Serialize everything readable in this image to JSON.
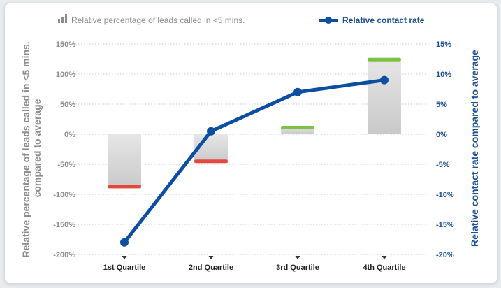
{
  "colors": {
    "left_axis": "#8c8c8c",
    "right_axis": "#1a4f94",
    "line": "#0b4ea2",
    "negative_bar_cap": "#e2483d",
    "positive_bar_cap": "#7cc242",
    "bar_body": "#d9d9d9",
    "grid": "#c8c8c8"
  },
  "legend": {
    "bars_label": "Relative percentage of leads called in <5 mins.",
    "bars_icon": "bar-chart-icon",
    "line_label": "Relative contact rate",
    "line_icon": "line-marker-icon"
  },
  "chart_data": {
    "type": "bar",
    "categories": [
      "1st Quartile",
      "2nd Quartile",
      "3rd Quartile",
      "4th Quartile"
    ],
    "series": [
      {
        "name": "Relative percentage of leads called in <5 mins.",
        "type": "bar",
        "axis": "left",
        "values": [
          -90,
          -48,
          14,
          127
        ]
      },
      {
        "name": "Relative contact rate",
        "type": "line",
        "axis": "right",
        "values": [
          -18,
          0.5,
          7,
          9
        ]
      }
    ],
    "ylabel_left": "Relative percentage of leads called in <5 mins. compared to average",
    "ylabel_right": "Relative contact rate compared to average",
    "ylim_left": [
      -200,
      150
    ],
    "ylim_right": [
      -20,
      15
    ],
    "yticks_left": [
      "150%",
      "100%",
      "50%",
      "0%",
      "-50%",
      "-100%",
      "-150%",
      "-200%"
    ],
    "yticks_right": [
      "15%",
      "10%",
      "5%",
      "0%",
      "-5%",
      "-10%",
      "-15%",
      "-20%"
    ],
    "grid": "horizontal dotted",
    "legend_position": "top"
  }
}
